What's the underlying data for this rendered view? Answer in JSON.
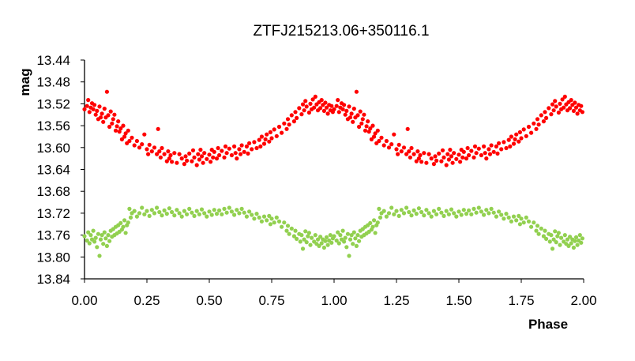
{
  "chart_data": {
    "type": "scatter",
    "title": "ZTFJ215213.06+350116.1",
    "xlabel": "Phase",
    "ylabel": "mag",
    "xlim": [
      0,
      2
    ],
    "ylim": [
      13.84,
      13.44
    ],
    "y_reversed": true,
    "x_ticks": [
      "0.00",
      "0.25",
      "0.50",
      "0.75",
      "1.00",
      "1.25",
      "1.50",
      "1.75",
      "2.00"
    ],
    "y_ticks": [
      "13.44",
      "13.48",
      "13.52",
      "13.56",
      "13.60",
      "13.64",
      "13.68",
      "13.72",
      "13.76",
      "13.80",
      "13.84"
    ],
    "grid": false,
    "legend": "none",
    "series": [
      {
        "color": "#ff0000",
        "period_repeat": true,
        "points": [
          [
            0.0,
            13.53
          ],
          [
            0.01,
            13.524
          ],
          [
            0.015,
            13.513
          ],
          [
            0.02,
            13.535
          ],
          [
            0.025,
            13.527
          ],
          [
            0.03,
            13.519
          ],
          [
            0.035,
            13.53
          ],
          [
            0.04,
            13.522
          ],
          [
            0.045,
            13.54
          ],
          [
            0.05,
            13.533
          ],
          [
            0.055,
            13.548
          ],
          [
            0.06,
            13.525
          ],
          [
            0.065,
            13.545
          ],
          [
            0.07,
            13.538
          ],
          [
            0.075,
            13.553
          ],
          [
            0.08,
            13.529
          ],
          [
            0.085,
            13.545
          ],
          [
            0.09,
            13.498
          ],
          [
            0.095,
            13.541
          ],
          [
            0.1,
            13.562
          ],
          [
            0.105,
            13.534
          ],
          [
            0.11,
            13.556
          ],
          [
            0.115,
            13.548
          ],
          [
            0.12,
            13.54
          ],
          [
            0.125,
            13.569
          ],
          [
            0.13,
            13.561
          ],
          [
            0.135,
            13.552
          ],
          [
            0.14,
            13.571
          ],
          [
            0.145,
            13.565
          ],
          [
            0.15,
            13.585
          ],
          [
            0.155,
            13.56
          ],
          [
            0.16,
            13.58
          ],
          [
            0.165,
            13.574
          ],
          [
            0.17,
            13.592
          ],
          [
            0.175,
            13.569
          ],
          [
            0.18,
            13.588
          ],
          [
            0.19,
            13.582
          ],
          [
            0.2,
            13.596
          ],
          [
            0.21,
            13.588
          ],
          [
            0.22,
            13.6
          ],
          [
            0.23,
            13.594
          ],
          [
            0.24,
            13.576
          ],
          [
            0.25,
            13.603
          ],
          [
            0.255,
            13.612
          ],
          [
            0.26,
            13.595
          ],
          [
            0.27,
            13.607
          ],
          [
            0.28,
            13.6
          ],
          [
            0.29,
            13.612
          ],
          [
            0.295,
            13.566
          ],
          [
            0.3,
            13.607
          ],
          [
            0.305,
            13.618
          ],
          [
            0.31,
            13.601
          ],
          [
            0.32,
            13.612
          ],
          [
            0.33,
            13.625
          ],
          [
            0.335,
            13.607
          ],
          [
            0.34,
            13.62
          ],
          [
            0.345,
            13.614
          ],
          [
            0.35,
            13.626
          ],
          [
            0.36,
            13.61
          ],
          [
            0.37,
            13.628
          ],
          [
            0.38,
            13.612
          ],
          [
            0.39,
            13.62
          ],
          [
            0.4,
            13.63
          ],
          [
            0.405,
            13.616
          ],
          [
            0.41,
            13.624
          ],
          [
            0.42,
            13.611
          ],
          [
            0.43,
            13.625
          ],
          [
            0.435,
            13.605
          ],
          [
            0.44,
            13.618
          ],
          [
            0.45,
            13.632
          ],
          [
            0.455,
            13.612
          ],
          [
            0.46,
            13.622
          ],
          [
            0.465,
            13.604
          ],
          [
            0.47,
            13.616
          ],
          [
            0.475,
            13.628
          ],
          [
            0.48,
            13.61
          ],
          [
            0.49,
            13.621
          ],
          [
            0.5,
            13.613
          ],
          [
            0.505,
            13.626
          ],
          [
            0.51,
            13.604
          ],
          [
            0.515,
            13.618
          ],
          [
            0.52,
            13.608
          ],
          [
            0.53,
            13.62
          ],
          [
            0.535,
            13.601
          ],
          [
            0.54,
            13.614
          ],
          [
            0.55,
            13.606
          ],
          [
            0.56,
            13.618
          ],
          [
            0.565,
            13.598
          ],
          [
            0.57,
            13.61
          ],
          [
            0.58,
            13.602
          ],
          [
            0.59,
            13.614
          ],
          [
            0.6,
            13.598
          ],
          [
            0.605,
            13.61
          ],
          [
            0.61,
            13.62
          ],
          [
            0.62,
            13.603
          ],
          [
            0.625,
            13.612
          ],
          [
            0.63,
            13.596
          ],
          [
            0.64,
            13.608
          ],
          [
            0.65,
            13.598
          ],
          [
            0.655,
            13.611
          ],
          [
            0.66,
            13.592
          ],
          [
            0.67,
            13.603
          ],
          [
            0.68,
            13.59
          ],
          [
            0.69,
            13.601
          ],
          [
            0.7,
            13.586
          ],
          [
            0.705,
            13.598
          ],
          [
            0.71,
            13.58
          ],
          [
            0.72,
            13.593
          ],
          [
            0.725,
            13.585
          ],
          [
            0.73,
            13.576
          ],
          [
            0.74,
            13.589
          ],
          [
            0.745,
            13.572
          ],
          [
            0.75,
            13.583
          ],
          [
            0.76,
            13.567
          ],
          [
            0.77,
            13.579
          ],
          [
            0.78,
            13.562
          ],
          [
            0.79,
            13.573
          ],
          [
            0.8,
            13.556
          ],
          [
            0.81,
            13.566
          ],
          [
            0.815,
            13.548
          ],
          [
            0.82,
            13.558
          ],
          [
            0.83,
            13.541
          ],
          [
            0.84,
            13.552
          ],
          [
            0.845,
            13.535
          ],
          [
            0.85,
            13.546
          ],
          [
            0.86,
            13.528
          ],
          [
            0.87,
            13.539
          ],
          [
            0.875,
            13.521
          ],
          [
            0.88,
            13.532
          ],
          [
            0.885,
            13.515
          ],
          [
            0.89,
            13.525
          ],
          [
            0.9,
            13.536
          ],
          [
            0.905,
            13.52
          ],
          [
            0.91,
            13.53
          ],
          [
            0.915,
            13.512
          ],
          [
            0.92,
            13.527
          ],
          [
            0.925,
            13.507
          ],
          [
            0.93,
            13.521
          ],
          [
            0.935,
            13.532
          ],
          [
            0.94,
            13.517
          ],
          [
            0.945,
            13.528
          ],
          [
            0.95,
            13.513
          ],
          [
            0.955,
            13.522
          ],
          [
            0.96,
            13.533
          ],
          [
            0.965,
            13.518
          ],
          [
            0.97,
            13.527
          ],
          [
            0.975,
            13.538
          ],
          [
            0.98,
            13.522
          ],
          [
            0.985,
            13.532
          ],
          [
            0.99,
            13.524
          ],
          [
            0.995,
            13.535
          ]
        ]
      },
      {
        "color": "#92d050",
        "period_repeat": true,
        "points": [
          [
            0.0,
            13.762
          ],
          [
            0.01,
            13.77
          ],
          [
            0.015,
            13.755
          ],
          [
            0.02,
            13.775
          ],
          [
            0.025,
            13.76
          ],
          [
            0.03,
            13.768
          ],
          [
            0.035,
            13.752
          ],
          [
            0.04,
            13.772
          ],
          [
            0.045,
            13.765
          ],
          [
            0.05,
            13.782
          ],
          [
            0.055,
            13.758
          ],
          [
            0.06,
            13.798
          ],
          [
            0.065,
            13.768
          ],
          [
            0.07,
            13.76
          ],
          [
            0.075,
            13.776
          ],
          [
            0.08,
            13.755
          ],
          [
            0.085,
            13.766
          ],
          [
            0.09,
            13.78
          ],
          [
            0.095,
            13.76
          ],
          [
            0.1,
            13.771
          ],
          [
            0.105,
            13.752
          ],
          [
            0.11,
            13.763
          ],
          [
            0.115,
            13.749
          ],
          [
            0.12,
            13.76
          ],
          [
            0.125,
            13.745
          ],
          [
            0.13,
            13.757
          ],
          [
            0.135,
            13.742
          ],
          [
            0.14,
            13.754
          ],
          [
            0.145,
            13.738
          ],
          [
            0.15,
            13.75
          ],
          [
            0.155,
            13.745
          ],
          [
            0.16,
            13.733
          ],
          [
            0.165,
            13.756
          ],
          [
            0.17,
            13.742
          ],
          [
            0.175,
            13.737
          ],
          [
            0.18,
            13.712
          ],
          [
            0.185,
            13.728
          ],
          [
            0.19,
            13.72
          ],
          [
            0.2,
            13.716
          ],
          [
            0.21,
            13.726
          ],
          [
            0.22,
            13.72
          ],
          [
            0.23,
            13.71
          ],
          [
            0.24,
            13.722
          ],
          [
            0.25,
            13.716
          ],
          [
            0.26,
            13.725
          ],
          [
            0.27,
            13.714
          ],
          [
            0.28,
            13.72
          ],
          [
            0.29,
            13.71
          ],
          [
            0.3,
            13.718
          ],
          [
            0.31,
            13.724
          ],
          [
            0.32,
            13.715
          ],
          [
            0.33,
            13.721
          ],
          [
            0.34,
            13.711
          ],
          [
            0.35,
            13.718
          ],
          [
            0.36,
            13.724
          ],
          [
            0.37,
            13.714
          ],
          [
            0.38,
            13.72
          ],
          [
            0.39,
            13.726
          ],
          [
            0.4,
            13.716
          ],
          [
            0.41,
            13.722
          ],
          [
            0.42,
            13.712
          ],
          [
            0.43,
            13.719
          ],
          [
            0.44,
            13.725
          ],
          [
            0.45,
            13.716
          ],
          [
            0.46,
            13.722
          ],
          [
            0.47,
            13.713
          ],
          [
            0.48,
            13.72
          ],
          [
            0.49,
            13.726
          ],
          [
            0.5,
            13.717
          ],
          [
            0.51,
            13.723
          ],
          [
            0.52,
            13.714
          ],
          [
            0.53,
            13.721
          ],
          [
            0.54,
            13.715
          ],
          [
            0.55,
            13.722
          ],
          [
            0.56,
            13.712
          ],
          [
            0.57,
            13.719
          ],
          [
            0.58,
            13.71
          ],
          [
            0.59,
            13.717
          ],
          [
            0.6,
            13.723
          ],
          [
            0.61,
            13.714
          ],
          [
            0.62,
            13.72
          ],
          [
            0.63,
            13.712
          ],
          [
            0.64,
            13.719
          ],
          [
            0.65,
            13.726
          ],
          [
            0.66,
            13.717
          ],
          [
            0.67,
            13.723
          ],
          [
            0.68,
            13.73
          ],
          [
            0.69,
            13.721
          ],
          [
            0.7,
            13.728
          ],
          [
            0.71,
            13.735
          ],
          [
            0.72,
            13.726
          ],
          [
            0.73,
            13.733
          ],
          [
            0.74,
            13.725
          ],
          [
            0.745,
            13.74
          ],
          [
            0.75,
            13.73
          ],
          [
            0.76,
            13.737
          ],
          [
            0.77,
            13.728
          ],
          [
            0.78,
            13.735
          ],
          [
            0.79,
            13.745
          ],
          [
            0.8,
            13.737
          ],
          [
            0.81,
            13.752
          ],
          [
            0.815,
            13.743
          ],
          [
            0.82,
            13.758
          ],
          [
            0.83,
            13.748
          ],
          [
            0.84,
            13.762
          ],
          [
            0.845,
            13.752
          ],
          [
            0.85,
            13.767
          ],
          [
            0.86,
            13.758
          ],
          [
            0.865,
            13.772
          ],
          [
            0.87,
            13.76
          ],
          [
            0.875,
            13.785
          ],
          [
            0.88,
            13.768
          ],
          [
            0.885,
            13.753
          ],
          [
            0.89,
            13.773
          ],
          [
            0.895,
            13.762
          ],
          [
            0.9,
            13.756
          ],
          [
            0.905,
            13.778
          ],
          [
            0.91,
            13.765
          ],
          [
            0.92,
            13.772
          ],
          [
            0.925,
            13.76
          ],
          [
            0.93,
            13.776
          ],
          [
            0.935,
            13.768
          ],
          [
            0.94,
            13.78
          ],
          [
            0.945,
            13.763
          ],
          [
            0.95,
            13.775
          ],
          [
            0.955,
            13.768
          ],
          [
            0.96,
            13.783
          ],
          [
            0.965,
            13.771
          ],
          [
            0.97,
            13.764
          ],
          [
            0.975,
            13.778
          ],
          [
            0.98,
            13.77
          ],
          [
            0.985,
            13.76
          ],
          [
            0.99,
            13.774
          ],
          [
            0.995,
            13.766
          ]
        ]
      }
    ]
  }
}
